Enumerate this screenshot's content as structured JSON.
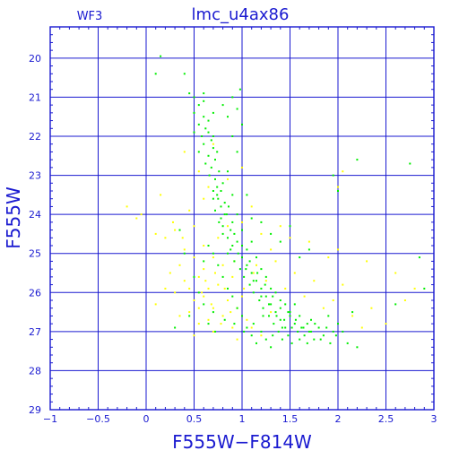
{
  "chart_data": {
    "type": "scatter",
    "title": "lmc_u4ax86",
    "corner_label": "WF3",
    "xlabel": "F555W−F814W",
    "ylabel": "F555W",
    "xlim": [
      -1,
      3
    ],
    "ylim": [
      29,
      19.2
    ],
    "y_inverted": true,
    "grid": true,
    "x_ticks": [
      -1,
      -0.5,
      0,
      0.5,
      1,
      1.5,
      2,
      2.5,
      3
    ],
    "x_tick_labels": [
      "−1",
      "−0.5",
      "0",
      "0.5",
      "1",
      "1.5",
      "2",
      "2.5",
      "3"
    ],
    "y_ticks": [
      20,
      21,
      22,
      23,
      24,
      25,
      26,
      27,
      28,
      29
    ],
    "y_tick_labels": [
      "20",
      "21",
      "22",
      "23",
      "24",
      "25",
      "26",
      "27",
      "28",
      "29"
    ],
    "series": [
      {
        "color": "#ffff00",
        "points": [
          [
            -0.2,
            23.8
          ],
          [
            -0.1,
            24.1
          ],
          [
            0.15,
            23.5
          ],
          [
            0.3,
            24.4
          ],
          [
            0.2,
            24.6
          ],
          [
            0.45,
            23.9
          ],
          [
            0.5,
            24.3
          ],
          [
            0.4,
            24.9
          ],
          [
            0.35,
            25.3
          ],
          [
            0.5,
            25.1
          ],
          [
            0.55,
            25.6
          ],
          [
            0.6,
            25.4
          ],
          [
            0.65,
            25.9
          ],
          [
            0.5,
            26.2
          ],
          [
            0.45,
            26.5
          ],
          [
            0.55,
            26.8
          ],
          [
            0.6,
            26.1
          ],
          [
            0.7,
            26.4
          ],
          [
            0.75,
            25.8
          ],
          [
            0.8,
            26.6
          ],
          [
            0.85,
            26.2
          ],
          [
            0.65,
            26.7
          ],
          [
            0.7,
            27.0
          ],
          [
            0.9,
            26.9
          ],
          [
            0.95,
            26.4
          ],
          [
            1.0,
            26.1
          ],
          [
            1.05,
            26.7
          ],
          [
            0.9,
            25.6
          ],
          [
            0.8,
            25.3
          ],
          [
            0.7,
            25.1
          ],
          [
            0.6,
            24.8
          ],
          [
            0.75,
            24.6
          ],
          [
            0.85,
            24.3
          ],
          [
            1.0,
            24.2
          ],
          [
            1.1,
            23.8
          ],
          [
            1.2,
            24.5
          ],
          [
            1.3,
            24.9
          ],
          [
            0.6,
            23.6
          ],
          [
            0.4,
            22.4
          ],
          [
            0.55,
            22.9
          ],
          [
            0.65,
            23.3
          ],
          [
            0.2,
            25.9
          ],
          [
            0.1,
            26.3
          ],
          [
            0.3,
            26.0
          ],
          [
            0.35,
            26.6
          ],
          [
            0.5,
            27.1
          ],
          [
            0.25,
            25.5
          ],
          [
            0.4,
            25.7
          ],
          [
            1.15,
            25.3
          ],
          [
            1.25,
            25.7
          ],
          [
            1.35,
            25.2
          ],
          [
            1.45,
            25.9
          ],
          [
            1.55,
            25.5
          ],
          [
            1.65,
            26.1
          ],
          [
            1.75,
            25.7
          ],
          [
            1.85,
            26.4
          ],
          [
            1.95,
            26.2
          ],
          [
            2.05,
            25.8
          ],
          [
            2.15,
            26.6
          ],
          [
            2.25,
            26.9
          ],
          [
            2.35,
            26.4
          ],
          [
            2.5,
            26.8
          ],
          [
            2.7,
            26.2
          ],
          [
            2.8,
            25.9
          ],
          [
            2.6,
            25.5
          ],
          [
            2.3,
            25.2
          ],
          [
            2.0,
            24.9
          ],
          [
            1.9,
            25.1
          ],
          [
            1.7,
            24.7
          ],
          [
            1.5,
            24.6
          ],
          [
            1.4,
            24.3
          ],
          [
            2.0,
            23.3
          ],
          [
            2.05,
            22.9
          ],
          [
            1.0,
            22.8
          ],
          [
            0.7,
            22.2
          ],
          [
            1.1,
            26.9
          ],
          [
            1.2,
            27.1
          ],
          [
            1.3,
            26.5
          ],
          [
            0.95,
            27.2
          ],
          [
            0.55,
            26.4
          ],
          [
            0.45,
            25.9
          ],
          [
            0.62,
            25.7
          ],
          [
            0.72,
            25.5
          ],
          [
            0.82,
            25.9
          ],
          [
            0.92,
            25.2
          ],
          [
            0.58,
            26.0
          ],
          [
            0.68,
            26.3
          ],
          [
            0.78,
            26.8
          ],
          [
            0.88,
            26.5
          ],
          [
            1.02,
            25.9
          ],
          [
            1.12,
            25.5
          ],
          [
            0.38,
            24.6
          ],
          [
            0.28,
            24.2
          ],
          [
            0.1,
            24.5
          ],
          [
            -0.05,
            24.0
          ],
          [
            0.85,
            23.1
          ]
        ]
      },
      {
        "color": "#00ee00",
        "points": [
          [
            0.15,
            19.95
          ],
          [
            0.1,
            20.4
          ],
          [
            0.4,
            20.4
          ],
          [
            0.45,
            20.9
          ],
          [
            0.5,
            21.0
          ],
          [
            0.55,
            21.2
          ],
          [
            0.6,
            20.9
          ],
          [
            0.5,
            21.4
          ],
          [
            0.55,
            21.7
          ],
          [
            0.6,
            21.5
          ],
          [
            0.65,
            21.9
          ],
          [
            0.6,
            22.2
          ],
          [
            0.65,
            22.5
          ],
          [
            0.7,
            22.3
          ],
          [
            0.68,
            22.8
          ],
          [
            0.72,
            23.1
          ],
          [
            0.7,
            23.4
          ],
          [
            0.75,
            23.6
          ],
          [
            0.72,
            23.9
          ],
          [
            0.78,
            24.1
          ],
          [
            0.8,
            24.3
          ],
          [
            0.82,
            23.7
          ],
          [
            0.85,
            24.6
          ],
          [
            0.88,
            24.4
          ],
          [
            0.9,
            24.8
          ],
          [
            0.85,
            25.0
          ],
          [
            0.92,
            25.2
          ],
          [
            0.95,
            24.7
          ],
          [
            0.98,
            25.4
          ],
          [
            1.0,
            25.1
          ],
          [
            1.02,
            25.6
          ],
          [
            1.05,
            25.3
          ],
          [
            1.08,
            25.8
          ],
          [
            1.1,
            25.5
          ],
          [
            1.12,
            26.0
          ],
          [
            1.15,
            25.7
          ],
          [
            1.18,
            26.2
          ],
          [
            1.2,
            25.9
          ],
          [
            1.22,
            26.4
          ],
          [
            1.25,
            26.1
          ],
          [
            1.28,
            26.6
          ],
          [
            1.3,
            26.3
          ],
          [
            1.33,
            26.8
          ],
          [
            1.35,
            26.5
          ],
          [
            1.38,
            27.0
          ],
          [
            1.4,
            26.7
          ],
          [
            1.42,
            27.2
          ],
          [
            1.45,
            26.9
          ],
          [
            1.48,
            27.1
          ],
          [
            1.5,
            26.6
          ],
          [
            1.52,
            27.3
          ],
          [
            1.55,
            26.8
          ],
          [
            1.58,
            27.0
          ],
          [
            1.6,
            27.2
          ],
          [
            1.62,
            26.9
          ],
          [
            1.65,
            27.1
          ],
          [
            1.68,
            26.8
          ],
          [
            1.7,
            27.0
          ],
          [
            1.72,
            26.7
          ],
          [
            1.75,
            27.2
          ],
          [
            1.8,
            26.9
          ],
          [
            1.85,
            27.1
          ],
          [
            1.9,
            26.6
          ],
          [
            1.95,
            27.0
          ],
          [
            2.0,
            26.8
          ],
          [
            0.85,
            22.9
          ],
          [
            0.9,
            23.5
          ],
          [
            0.95,
            24.0
          ],
          [
            1.0,
            24.4
          ],
          [
            1.05,
            24.9
          ],
          [
            1.1,
            24.7
          ],
          [
            1.15,
            25.1
          ],
          [
            1.2,
            25.4
          ],
          [
            1.25,
            25.6
          ],
          [
            1.3,
            25.9
          ],
          [
            1.35,
            26.0
          ],
          [
            1.4,
            26.2
          ],
          [
            1.45,
            26.3
          ],
          [
            1.5,
            26.5
          ],
          [
            1.55,
            26.3
          ],
          [
            0.75,
            25.3
          ],
          [
            0.8,
            25.6
          ],
          [
            0.85,
            25.9
          ],
          [
            0.9,
            26.1
          ],
          [
            0.95,
            26.4
          ],
          [
            1.0,
            26.6
          ],
          [
            1.05,
            26.9
          ],
          [
            1.1,
            27.1
          ],
          [
            1.15,
            27.3
          ],
          [
            1.2,
            27.0
          ],
          [
            1.25,
            27.2
          ],
          [
            1.3,
            27.4
          ],
          [
            0.7,
            26.5
          ],
          [
            0.65,
            26.8
          ],
          [
            0.6,
            26.3
          ],
          [
            0.55,
            26.0
          ],
          [
            0.8,
            21.2
          ],
          [
            0.85,
            21.5
          ],
          [
            0.9,
            21.0
          ],
          [
            0.95,
            21.3
          ],
          [
            1.0,
            21.7
          ],
          [
            0.5,
            21.9
          ],
          [
            0.55,
            22.4
          ],
          [
            0.58,
            22.0
          ],
          [
            0.62,
            22.7
          ],
          [
            0.66,
            23.0
          ],
          [
            0.7,
            23.6
          ],
          [
            0.74,
            23.3
          ],
          [
            0.78,
            23.8
          ],
          [
            0.8,
            24.5
          ],
          [
            0.76,
            24.2
          ],
          [
            0.84,
            24.0
          ],
          [
            0.88,
            24.9
          ],
          [
            0.92,
            24.5
          ],
          [
            0.96,
            25.0
          ],
          [
            1.0,
            24.8
          ],
          [
            1.04,
            25.4
          ],
          [
            1.08,
            25.2
          ],
          [
            1.12,
            25.7
          ],
          [
            1.16,
            25.5
          ],
          [
            1.2,
            26.1
          ],
          [
            1.24,
            25.8
          ],
          [
            1.28,
            26.3
          ],
          [
            1.32,
            26.1
          ],
          [
            1.36,
            26.6
          ],
          [
            1.4,
            26.4
          ],
          [
            1.44,
            26.7
          ],
          [
            1.48,
            26.5
          ],
          [
            1.52,
            26.9
          ],
          [
            1.56,
            26.7
          ],
          [
            1.6,
            26.6
          ],
          [
            1.64,
            26.9
          ],
          [
            1.68,
            27.3
          ],
          [
            1.72,
            27.0
          ],
          [
            1.76,
            26.8
          ],
          [
            1.82,
            27.2
          ],
          [
            1.88,
            26.9
          ],
          [
            1.92,
            27.3
          ],
          [
            1.98,
            27.1
          ],
          [
            2.05,
            27.0
          ],
          [
            2.1,
            27.3
          ],
          [
            2.2,
            27.4
          ],
          [
            2.15,
            26.5
          ],
          [
            1.95,
            23.0
          ],
          [
            2.0,
            23.4
          ],
          [
            2.2,
            22.6
          ],
          [
            2.75,
            22.7
          ],
          [
            2.85,
            25.1
          ],
          [
            2.9,
            25.9
          ],
          [
            2.6,
            26.3
          ],
          [
            1.5,
            24.3
          ],
          [
            1.6,
            25.1
          ],
          [
            1.7,
            24.9
          ],
          [
            1.4,
            24.7
          ],
          [
            1.3,
            24.5
          ],
          [
            1.2,
            24.2
          ],
          [
            1.1,
            24.1
          ],
          [
            1.05,
            23.5
          ],
          [
            0.95,
            22.4
          ],
          [
            0.9,
            22.0
          ],
          [
            0.3,
            26.9
          ],
          [
            0.45,
            26.6
          ],
          [
            0.5,
            25.6
          ],
          [
            0.4,
            25.0
          ],
          [
            0.35,
            24.4
          ],
          [
            0.65,
            24.8
          ],
          [
            0.7,
            25.0
          ],
          [
            0.6,
            25.2
          ],
          [
            0.72,
            27.0
          ],
          [
            0.82,
            26.7
          ],
          [
            0.92,
            26.8
          ],
          [
            1.02,
            27.0
          ],
          [
            1.12,
            26.8
          ],
          [
            1.22,
            26.6
          ],
          [
            1.32,
            27.1
          ],
          [
            1.42,
            26.9
          ],
          [
            0.98,
            20.8
          ],
          [
            0.6,
            21.1
          ],
          [
            0.65,
            21.6
          ],
          [
            0.7,
            21.4
          ],
          [
            0.62,
            21.8
          ],
          [
            0.68,
            22.1
          ],
          [
            0.74,
            22.4
          ],
          [
            0.7,
            22.0
          ],
          [
            0.72,
            22.6
          ],
          [
            0.76,
            22.9
          ],
          [
            0.8,
            23.2
          ],
          [
            0.74,
            23.5
          ],
          [
            0.78,
            23.4
          ],
          [
            0.82,
            24.0
          ],
          [
            0.86,
            23.8
          ],
          [
            0.9,
            24.2
          ]
        ]
      }
    ]
  }
}
